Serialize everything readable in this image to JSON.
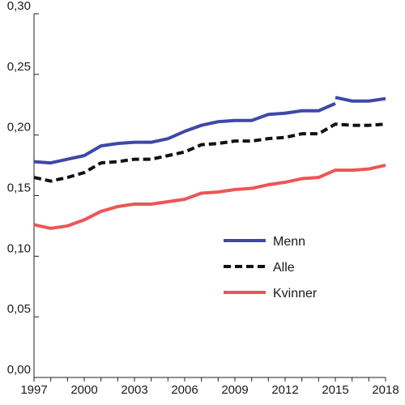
{
  "chart_data": {
    "type": "line",
    "x": [
      1997,
      1998,
      1999,
      2000,
      2001,
      2002,
      2003,
      2004,
      2005,
      2006,
      2007,
      2008,
      2009,
      2010,
      2011,
      2012,
      2013,
      2014,
      2015,
      2016,
      2017,
      2018
    ],
    "xticks": [
      1997,
      2000,
      2003,
      2006,
      2009,
      2012,
      2015,
      2018
    ],
    "xtick_labels": [
      "1997",
      "2000",
      "2003",
      "2006",
      "2009",
      "2012",
      "2015",
      "2018"
    ],
    "xlim": [
      1997,
      2018
    ],
    "ylim": [
      0,
      0.3
    ],
    "yticks": [
      0,
      0.05,
      0.1,
      0.15,
      0.2,
      0.25,
      0.3
    ],
    "ytick_labels": [
      "0,00",
      "0,05",
      "0,10",
      "0,15",
      "0,20",
      "0,25",
      "0,30"
    ],
    "grid": false,
    "legend_position": "center-right",
    "series": [
      {
        "name": "Menn",
        "color": "#3f48a8",
        "style": "solid",
        "segments": [
          {
            "x": [
              1997,
              1998,
              1999,
              2000,
              2001,
              2002,
              2003,
              2004,
              2005,
              2006,
              2007,
              2008,
              2009,
              2010,
              2011,
              2012,
              2013,
              2014,
              2015
            ],
            "values": [
              0.178,
              0.177,
              0.18,
              0.183,
              0.191,
              0.193,
              0.194,
              0.194,
              0.197,
              0.203,
              0.208,
              0.211,
              0.212,
              0.212,
              0.217,
              0.218,
              0.22,
              0.22,
              0.226
            ]
          },
          {
            "x": [
              2015,
              2016,
              2017,
              2018
            ],
            "values": [
              0.231,
              0.228,
              0.228,
              0.23
            ]
          }
        ]
      },
      {
        "name": "Alle",
        "color": "#111111",
        "style": "dashed",
        "segments": [
          {
            "x": [
              1997,
              1998,
              1999,
              2000,
              2001,
              2002,
              2003,
              2004,
              2005,
              2006,
              2007,
              2008,
              2009,
              2010,
              2011,
              2012,
              2013,
              2014,
              2015,
              2016,
              2017,
              2018
            ],
            "values": [
              0.165,
              0.162,
              0.165,
              0.169,
              0.177,
              0.178,
              0.18,
              0.18,
              0.183,
              0.186,
              0.192,
              0.193,
              0.195,
              0.195,
              0.197,
              0.198,
              0.201,
              0.201,
              0.209,
              0.208,
              0.208,
              0.209
            ]
          }
        ]
      },
      {
        "name": "Kvinner",
        "color": "#ee5555",
        "style": "solid",
        "segments": [
          {
            "x": [
              1997,
              1998,
              1999,
              2000,
              2001,
              2002,
              2003,
              2004,
              2005,
              2006,
              2007,
              2008,
              2009,
              2010,
              2011,
              2012,
              2013,
              2014,
              2015,
              2016,
              2017,
              2018
            ],
            "values": [
              0.126,
              0.123,
              0.125,
              0.13,
              0.137,
              0.141,
              0.143,
              0.143,
              0.145,
              0.147,
              0.152,
              0.153,
              0.155,
              0.156,
              0.159,
              0.161,
              0.164,
              0.165,
              0.171,
              0.171,
              0.172,
              0.175
            ]
          }
        ]
      }
    ]
  }
}
